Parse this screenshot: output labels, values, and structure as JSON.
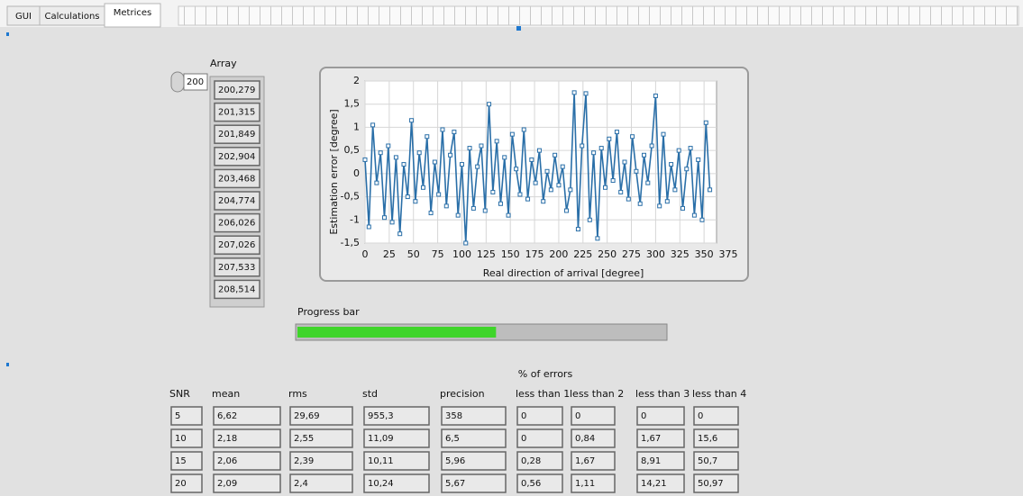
{
  "tabs": [
    {
      "label": "GUI",
      "selected": false
    },
    {
      "label": "Calculations",
      "selected": false
    },
    {
      "label": "Metrices",
      "selected": true
    }
  ],
  "array": {
    "label": "Array",
    "index": "200",
    "values": [
      "200,279",
      "201,315",
      "201,849",
      "202,904",
      "203,468",
      "204,774",
      "206,026",
      "207,026",
      "207,533",
      "208,514"
    ]
  },
  "chart_data": {
    "type": "line",
    "x_label": "Real direction of arrival [degree]",
    "y_label": "Estimation error [degree]",
    "x": [
      0,
      4,
      8,
      12,
      16,
      20,
      24,
      28,
      32,
      36,
      40,
      44,
      48,
      52,
      56,
      60,
      64,
      68,
      72,
      76,
      80,
      84,
      88,
      92,
      96,
      100,
      104,
      108,
      112,
      116,
      120,
      124,
      128,
      132,
      136,
      140,
      144,
      148,
      152,
      156,
      160,
      164,
      168,
      172,
      176,
      180,
      184,
      188,
      192,
      196,
      200,
      204,
      208,
      212,
      216,
      220,
      224,
      228,
      232,
      236,
      240,
      244,
      248,
      252,
      256,
      260,
      264,
      268,
      272,
      276,
      280,
      284,
      288,
      292,
      296,
      300,
      304,
      308,
      312,
      316,
      320,
      324,
      328,
      332,
      336,
      340,
      344,
      348,
      352,
      356
    ],
    "series": [
      {
        "color": "#2a6fa8",
        "values": [
          0.3,
          -1.15,
          1.05,
          -0.2,
          0.45,
          -0.95,
          0.6,
          -1.05,
          0.35,
          -1.3,
          0.2,
          -0.5,
          1.15,
          -0.6,
          0.45,
          -0.3,
          0.8,
          -0.85,
          0.25,
          -0.45,
          0.95,
          -0.7,
          0.4,
          0.9,
          -0.9,
          0.2,
          -1.5,
          0.55,
          -0.75,
          0.15,
          0.6,
          -0.8,
          1.5,
          -0.4,
          0.7,
          -0.65,
          0.35,
          -0.9,
          0.85,
          0.1,
          -0.45,
          0.95,
          -0.55,
          0.3,
          -0.2,
          0.5,
          -0.6,
          0.05,
          -0.35,
          0.4,
          -0.25,
          0.15,
          -0.8,
          -0.35,
          1.75,
          -1.2,
          0.6,
          1.73,
          -1.0,
          0.45,
          -1.4,
          0.55,
          -0.3,
          0.75,
          -0.15,
          0.9,
          -0.4,
          0.25,
          -0.55,
          0.8,
          0.05,
          -0.65,
          0.4,
          -0.2,
          0.6,
          1.68,
          -0.7,
          0.85,
          -0.6,
          0.2,
          -0.35,
          0.5,
          -0.75,
          0.1,
          0.55,
          -0.9,
          0.3,
          -1.0,
          1.1,
          -0.35
        ]
      }
    ],
    "xlim": [
      0,
      375
    ],
    "xticks": [
      0,
      25,
      50,
      75,
      100,
      125,
      150,
      175,
      200,
      225,
      250,
      275,
      300,
      325,
      350,
      375
    ],
    "ylim": [
      -1.5,
      2
    ],
    "yticks": [
      {
        "value": -1.5,
        "label": "-1,5"
      },
      -1,
      {
        "value": -0.5,
        "label": "-0,5"
      },
      0,
      {
        "value": 0.5,
        "label": "0,5"
      },
      1,
      {
        "value": 1.5,
        "label": "1,5"
      },
      2
    ],
    "grid": true
  },
  "progress_bar": {
    "label": "Progress bar",
    "value": 54,
    "range": [
      0,
      100
    ],
    "color": "#3fd52a"
  },
  "table": {
    "group_header": "% of errors",
    "columns": [
      "SNR",
      "mean",
      "rms",
      "std",
      "precision",
      "less than 1",
      "less than 2",
      "less than 3",
      "less than 4"
    ],
    "rows": [
      [
        "5",
        "6,62",
        "29,69",
        "955,3",
        "358",
        "0",
        "0",
        "0",
        "0"
      ],
      [
        "10",
        "2,18",
        "2,55",
        "11,09",
        "6,5",
        "0",
        "0,84",
        "1,67",
        "15,6"
      ],
      [
        "15",
        "2,06",
        "2,39",
        "10,11",
        "5,96",
        "0,28",
        "1,67",
        "8,91",
        "50,7"
      ],
      [
        "20",
        "2,09",
        "2,4",
        "10,24",
        "5,67",
        "0,56",
        "1,11",
        "14,21",
        "50,97"
      ]
    ]
  }
}
